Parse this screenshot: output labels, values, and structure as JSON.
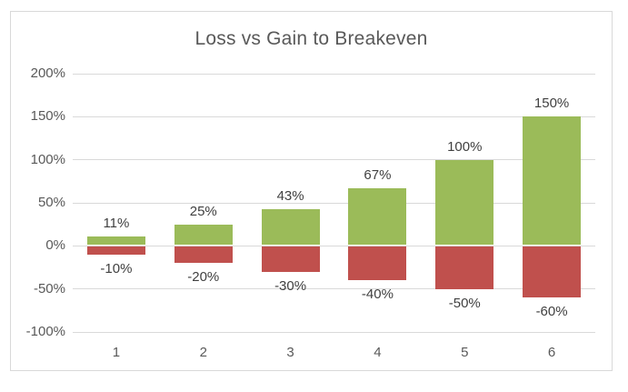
{
  "chart_data": {
    "type": "bar",
    "title": "Loss vs Gain to Breakeven",
    "categories": [
      "1",
      "2",
      "3",
      "4",
      "5",
      "6"
    ],
    "series": [
      {
        "id": "gain",
        "color": "#9bbb59",
        "values": [
          11,
          25,
          43,
          67,
          100,
          150
        ],
        "labels": [
          "11%",
          "25%",
          "43%",
          "67%",
          "100%",
          "150%"
        ]
      },
      {
        "id": "loss",
        "color": "#c0504d",
        "values": [
          -10,
          -20,
          -30,
          -40,
          -50,
          -60
        ],
        "labels": [
          "-10%",
          "-20%",
          "-30%",
          "-40%",
          "-50%",
          "-60%"
        ]
      }
    ],
    "y_axis": {
      "min": -100,
      "max": 200,
      "ticks": [
        200,
        150,
        100,
        50,
        0,
        -50,
        -100
      ],
      "tick_labels": [
        "200%",
        "150%",
        "100%",
        "50%",
        "0%",
        "-50%",
        "-100%"
      ]
    },
    "xlabel": "",
    "ylabel": "",
    "grid": true,
    "legend": "none"
  },
  "colors": {
    "gain_bar": "#9bbb59",
    "loss_bar": "#c0504d",
    "gridline": "#d9d9d9",
    "chart_border": "#d9d9d9",
    "title_text": "#595959",
    "axis_text": "#595959",
    "data_label_text": "#404040",
    "background": "#ffffff"
  }
}
